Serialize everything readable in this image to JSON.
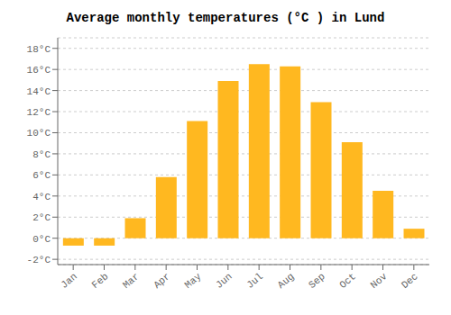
{
  "chart_data": {
    "type": "bar",
    "title": "Average monthly temperatures (°C ) in Lund",
    "categories": [
      "Jan",
      "Feb",
      "Mar",
      "Apr",
      "May",
      "Jun",
      "Jul",
      "Aug",
      "Sep",
      "Oct",
      "Nov",
      "Dec"
    ],
    "values": [
      -0.7,
      -0.7,
      1.9,
      5.8,
      11.1,
      14.9,
      16.5,
      16.3,
      12.9,
      9.1,
      4.5,
      0.9
    ],
    "color": "#FFB820",
    "ylim": [
      -2.5,
      19.0
    ],
    "yticks": [
      {
        "value": -2,
        "label": "-2°C"
      },
      {
        "value": 0,
        "label": "0°C"
      },
      {
        "value": 2,
        "label": "2°C"
      },
      {
        "value": 4,
        "label": "4°C"
      },
      {
        "value": 6,
        "label": "6°C"
      },
      {
        "value": 8,
        "label": "8°C"
      },
      {
        "value": 10,
        "label": "10°C"
      },
      {
        "value": 12,
        "label": "12°C"
      },
      {
        "value": 14,
        "label": "14°C"
      },
      {
        "value": 16,
        "label": "16°C"
      },
      {
        "value": 18,
        "label": "18°C"
      }
    ],
    "grid": true
  }
}
